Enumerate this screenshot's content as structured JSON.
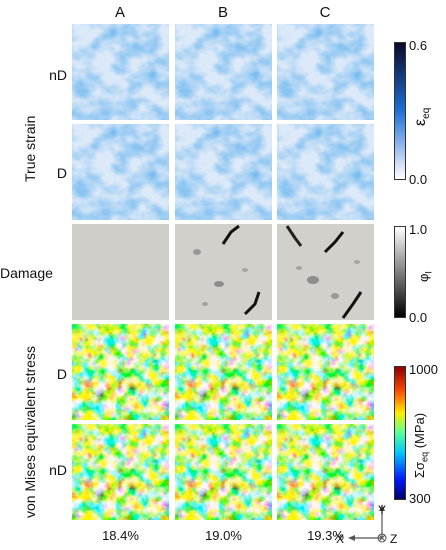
{
  "columns": [
    "A",
    "B",
    "C"
  ],
  "rows": {
    "strain_nD": "nD",
    "strain_D": "D",
    "damage": "Damage",
    "stress_D": "D",
    "stress_nD": "nD"
  },
  "group_labels": {
    "true_strain": "True strain",
    "von_mises": "von Mises equivalent stress"
  },
  "colorbars": {
    "strain": {
      "symbol": "ε",
      "subscript": "eq",
      "max": "0.6",
      "min": "0.0",
      "low_color": "#ffffff",
      "high_color": "#0a0a28",
      "mid_color": "#1e6fd9"
    },
    "damage": {
      "symbol": "φ",
      "subscript": "I",
      "max": "1.0",
      "min": "0.0",
      "low_color": "#000000",
      "high_color": "#ffffff"
    },
    "stress": {
      "label": "Σσ",
      "subscript": "eq",
      "unit": "(MPa)",
      "max": "1000",
      "min": "300"
    }
  },
  "percentages": [
    "18.4%",
    "19.0%",
    "19.3%"
  ],
  "axes": {
    "y": "Y",
    "x": "X",
    "z": "Z"
  }
}
